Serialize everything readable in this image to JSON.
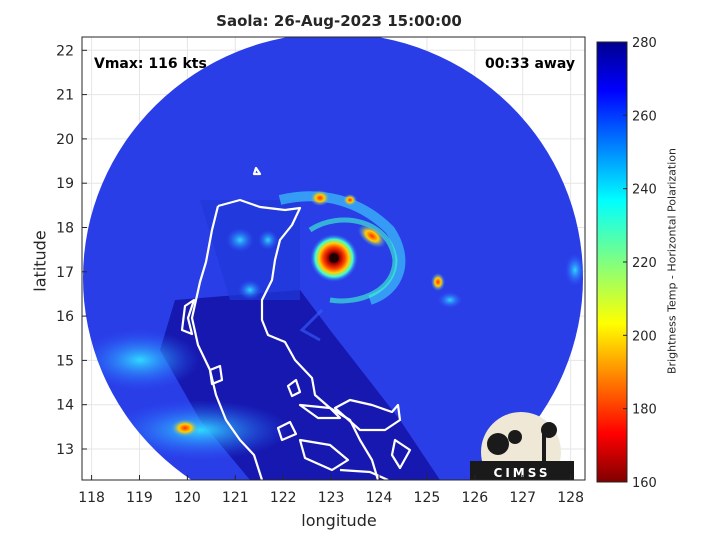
{
  "chart_data": {
    "type": "heatmap",
    "title": "Saola: 26-Aug-2023 15:00:00",
    "xlabel": "longitude",
    "ylabel": "latitude",
    "xlim": [
      117.8,
      128.3
    ],
    "ylim": [
      12.3,
      22.3
    ],
    "x_ticks": [
      "118",
      "119",
      "120",
      "121",
      "122",
      "123",
      "124",
      "125",
      "126",
      "127",
      "128"
    ],
    "y_ticks": [
      "13",
      "14",
      "15",
      "16",
      "17",
      "18",
      "19",
      "20",
      "21",
      "22"
    ],
    "grid": true,
    "annotations": {
      "vmax": "Vmax: 116 kts",
      "time_away": "00:33 away"
    },
    "storm_center": {
      "lon": 122.9,
      "lat": 17.3
    },
    "colorbar": {
      "label": "Brightness Temp - Horizontal Polarization",
      "range": [
        160,
        280
      ],
      "ticks": [
        "160",
        "180",
        "200",
        "220",
        "240",
        "260",
        "280"
      ],
      "colormap": "jet"
    },
    "logo_text": "CIMSS",
    "colors": {
      "background_field": "#2a3ee8",
      "deep_blue": "#1010a8",
      "eye": "#8a0000"
    }
  }
}
